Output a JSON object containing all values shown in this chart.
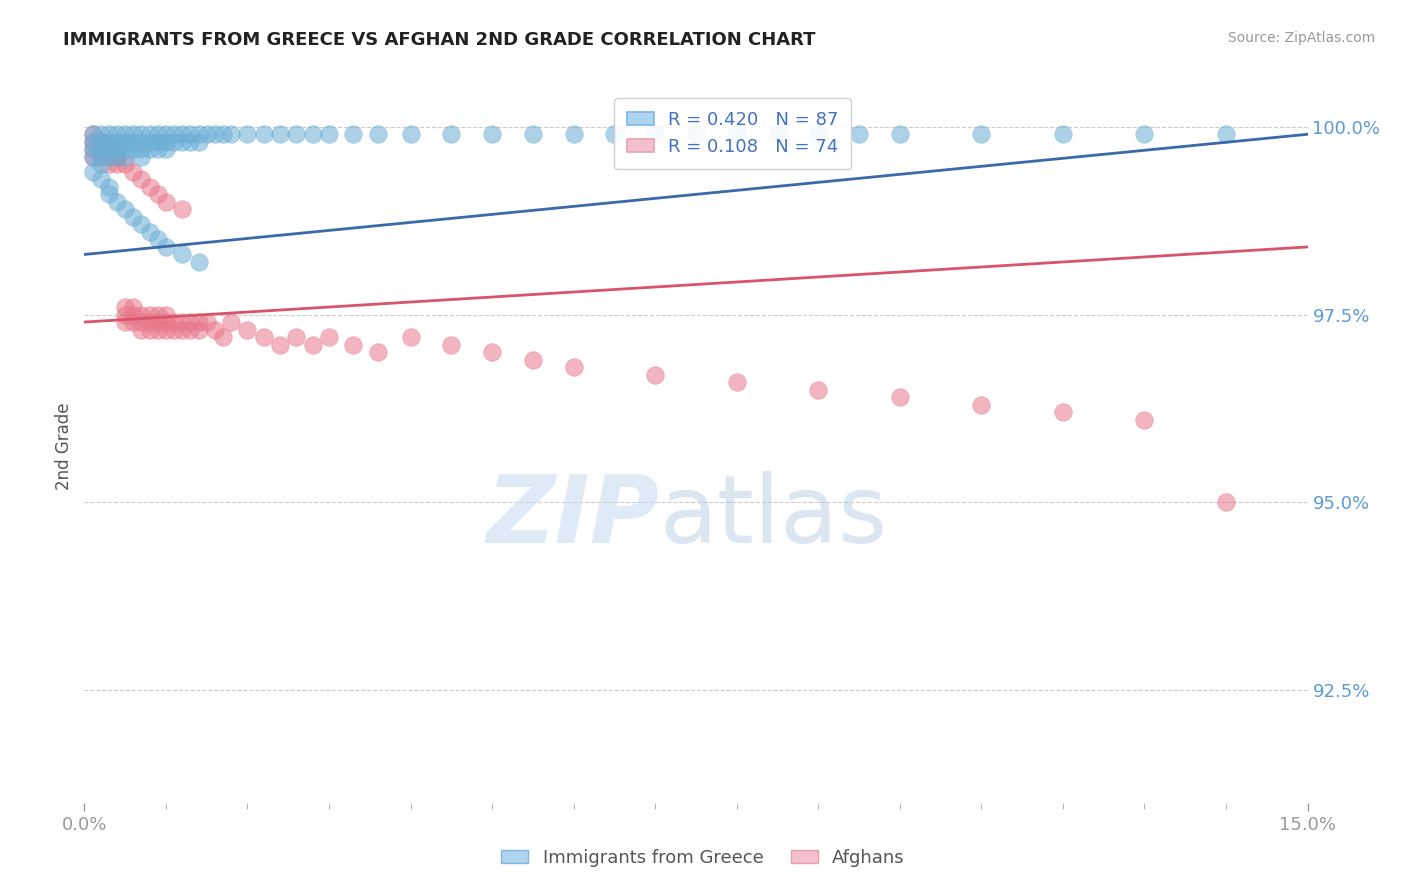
{
  "title": "IMMIGRANTS FROM GREECE VS AFGHAN 2ND GRADE CORRELATION CHART",
  "source_text": "Source: ZipAtlas.com",
  "ylabel": "2nd Grade",
  "xlim": [
    0.0,
    0.15
  ],
  "ylim": [
    0.91,
    1.005
  ],
  "ytick_labels": [
    "92.5%",
    "95.0%",
    "97.5%",
    "100.0%"
  ],
  "ytick_vals": [
    0.925,
    0.95,
    0.975,
    1.0
  ],
  "R_greece": 0.42,
  "N_greece": 87,
  "R_afghan": 0.108,
  "N_afghan": 74,
  "blue_color": "#6BAED6",
  "pink_color": "#E8778A",
  "blue_line_color": "#3A6AAA",
  "pink_line_color": "#D9536A",
  "greece_x": [
    0.001,
    0.001,
    0.001,
    0.001,
    0.002,
    0.002,
    0.002,
    0.002,
    0.002,
    0.003,
    0.003,
    0.003,
    0.003,
    0.004,
    0.004,
    0.004,
    0.004,
    0.005,
    0.005,
    0.005,
    0.005,
    0.006,
    0.006,
    0.006,
    0.007,
    0.007,
    0.007,
    0.007,
    0.008,
    0.008,
    0.008,
    0.009,
    0.009,
    0.009,
    0.01,
    0.01,
    0.01,
    0.011,
    0.011,
    0.012,
    0.012,
    0.013,
    0.013,
    0.014,
    0.014,
    0.015,
    0.016,
    0.017,
    0.018,
    0.02,
    0.022,
    0.024,
    0.026,
    0.028,
    0.03,
    0.033,
    0.036,
    0.04,
    0.045,
    0.05,
    0.055,
    0.06,
    0.065,
    0.07,
    0.075,
    0.08,
    0.085,
    0.09,
    0.095,
    0.1,
    0.11,
    0.12,
    0.13,
    0.14,
    0.001,
    0.002,
    0.003,
    0.003,
    0.004,
    0.005,
    0.006,
    0.007,
    0.008,
    0.009,
    0.01,
    0.012,
    0.014
  ],
  "greece_y": [
    0.999,
    0.998,
    0.997,
    0.996,
    0.999,
    0.998,
    0.997,
    0.996,
    0.995,
    0.999,
    0.998,
    0.997,
    0.996,
    0.999,
    0.998,
    0.997,
    0.996,
    0.999,
    0.998,
    0.997,
    0.996,
    0.999,
    0.998,
    0.997,
    0.999,
    0.998,
    0.997,
    0.996,
    0.999,
    0.998,
    0.997,
    0.999,
    0.998,
    0.997,
    0.999,
    0.998,
    0.997,
    0.999,
    0.998,
    0.999,
    0.998,
    0.999,
    0.998,
    0.999,
    0.998,
    0.999,
    0.999,
    0.999,
    0.999,
    0.999,
    0.999,
    0.999,
    0.999,
    0.999,
    0.999,
    0.999,
    0.999,
    0.999,
    0.999,
    0.999,
    0.999,
    0.999,
    0.999,
    0.999,
    0.999,
    0.999,
    0.999,
    0.999,
    0.999,
    0.999,
    0.999,
    0.999,
    0.999,
    0.999,
    0.994,
    0.993,
    0.992,
    0.991,
    0.99,
    0.989,
    0.988,
    0.987,
    0.986,
    0.985,
    0.984,
    0.983,
    0.982
  ],
  "afghan_x": [
    0.001,
    0.001,
    0.001,
    0.002,
    0.002,
    0.002,
    0.003,
    0.003,
    0.003,
    0.004,
    0.004,
    0.004,
    0.005,
    0.005,
    0.005,
    0.006,
    0.006,
    0.006,
    0.007,
    0.007,
    0.007,
    0.008,
    0.008,
    0.008,
    0.009,
    0.009,
    0.009,
    0.01,
    0.01,
    0.01,
    0.011,
    0.011,
    0.012,
    0.012,
    0.013,
    0.013,
    0.014,
    0.014,
    0.015,
    0.016,
    0.017,
    0.018,
    0.02,
    0.022,
    0.024,
    0.026,
    0.028,
    0.03,
    0.033,
    0.036,
    0.04,
    0.045,
    0.05,
    0.055,
    0.06,
    0.07,
    0.08,
    0.09,
    0.1,
    0.11,
    0.12,
    0.13,
    0.14,
    0.001,
    0.002,
    0.003,
    0.004,
    0.005,
    0.006,
    0.007,
    0.008,
    0.009,
    0.01,
    0.012
  ],
  "afghan_y": [
    0.998,
    0.997,
    0.996,
    0.998,
    0.997,
    0.996,
    0.997,
    0.996,
    0.995,
    0.997,
    0.996,
    0.995,
    0.976,
    0.975,
    0.974,
    0.976,
    0.975,
    0.974,
    0.975,
    0.974,
    0.973,
    0.975,
    0.974,
    0.973,
    0.975,
    0.974,
    0.973,
    0.975,
    0.974,
    0.973,
    0.974,
    0.973,
    0.974,
    0.973,
    0.974,
    0.973,
    0.974,
    0.973,
    0.974,
    0.973,
    0.972,
    0.974,
    0.973,
    0.972,
    0.971,
    0.972,
    0.971,
    0.972,
    0.971,
    0.97,
    0.972,
    0.971,
    0.97,
    0.969,
    0.968,
    0.967,
    0.966,
    0.965,
    0.964,
    0.963,
    0.962,
    0.961,
    0.95,
    0.999,
    0.998,
    0.997,
    0.996,
    0.995,
    0.994,
    0.993,
    0.992,
    0.991,
    0.99,
    0.989
  ],
  "greece_line": [
    0.983,
    0.999
  ],
  "afghan_line": [
    0.974,
    0.984
  ]
}
